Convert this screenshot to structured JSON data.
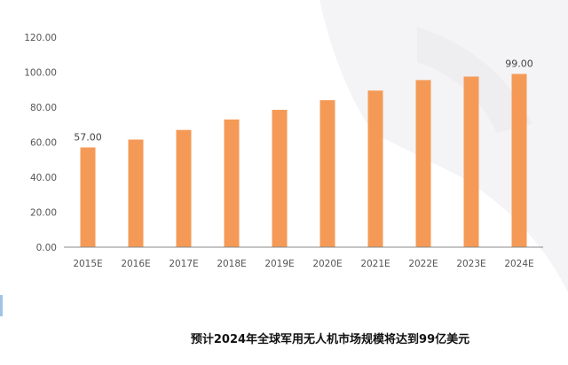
{
  "chart_data": {
    "type": "bar",
    "categories": [
      "2015E",
      "2016E",
      "2017E",
      "2018E",
      "2019E",
      "2020E",
      "2021E",
      "2022E",
      "2023E",
      "2024E"
    ],
    "values": [
      57,
      61.5,
      67,
      73,
      78.5,
      84,
      89.5,
      95.5,
      97.5,
      99
    ],
    "data_labels": [
      {
        "category": "2015E",
        "text": "57.00"
      },
      {
        "category": "2024E",
        "text": "99.00"
      }
    ],
    "y_ticks": [
      "0.00",
      "20.00",
      "40.00",
      "60.00",
      "80.00",
      "100.00",
      "120.00"
    ],
    "ylim": [
      0,
      120
    ],
    "title": "",
    "xlabel": "",
    "ylabel": "",
    "grid": false,
    "colors": {
      "bar": "#F59A56",
      "axis": "#888888",
      "text": "#555555"
    }
  },
  "caption": "预计2024年全球军用无人机市场规模将达到99亿美元"
}
